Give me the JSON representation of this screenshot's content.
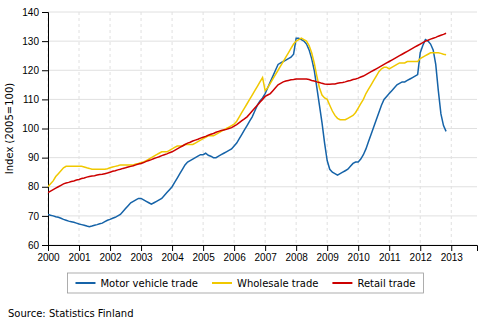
{
  "chart_data": {
    "type": "line",
    "ylabel": "Index (2005=100)",
    "annotations": [
      "Source: Statistics Finland"
    ],
    "xlim": [
      2000,
      2013.83
    ],
    "ylim": [
      60,
      140
    ],
    "xticks": [
      2000,
      2001,
      2002,
      2003,
      2004,
      2005,
      2006,
      2007,
      2008,
      2009,
      2010,
      2011,
      2012,
      2013
    ],
    "yticks": [
      60,
      70,
      80,
      90,
      100,
      110,
      120,
      130,
      140
    ],
    "grid": true,
    "legend": "bottom",
    "x": [
      2000.0,
      2000.083,
      2000.167,
      2000.25,
      2000.333,
      2000.417,
      2000.5,
      2000.583,
      2000.667,
      2000.75,
      2000.833,
      2000.917,
      2001.0,
      2001.083,
      2001.167,
      2001.25,
      2001.333,
      2001.417,
      2001.5,
      2001.583,
      2001.667,
      2001.75,
      2001.833,
      2001.917,
      2002.0,
      2002.083,
      2002.167,
      2002.25,
      2002.333,
      2002.417,
      2002.5,
      2002.583,
      2002.667,
      2002.75,
      2002.833,
      2002.917,
      2003.0,
      2003.083,
      2003.167,
      2003.25,
      2003.333,
      2003.417,
      2003.5,
      2003.583,
      2003.667,
      2003.75,
      2003.833,
      2003.917,
      2004.0,
      2004.083,
      2004.167,
      2004.25,
      2004.333,
      2004.417,
      2004.5,
      2004.583,
      2004.667,
      2004.75,
      2004.833,
      2004.917,
      2005.0,
      2005.083,
      2005.167,
      2005.25,
      2005.333,
      2005.417,
      2005.5,
      2005.583,
      2005.667,
      2005.75,
      2005.833,
      2005.917,
      2006.0,
      2006.083,
      2006.167,
      2006.25,
      2006.333,
      2006.417,
      2006.5,
      2006.583,
      2006.667,
      2006.75,
      2006.833,
      2006.917,
      2007.0,
      2007.083,
      2007.167,
      2007.25,
      2007.333,
      2007.417,
      2007.5,
      2007.583,
      2007.667,
      2007.75,
      2007.833,
      2007.917,
      2008.0,
      2008.083,
      2008.167,
      2008.25,
      2008.333,
      2008.417,
      2008.5,
      2008.583,
      2008.667,
      2008.75,
      2008.833,
      2008.917,
      2009.0,
      2009.083,
      2009.167,
      2009.25,
      2009.333,
      2009.417,
      2009.5,
      2009.583,
      2009.667,
      2009.75,
      2009.833,
      2009.917,
      2010.0,
      2010.083,
      2010.167,
      2010.25,
      2010.333,
      2010.417,
      2010.5,
      2010.583,
      2010.667,
      2010.75,
      2010.833,
      2010.917,
      2011.0,
      2011.083,
      2011.167,
      2011.25,
      2011.333,
      2011.417,
      2011.5,
      2011.583,
      2011.667,
      2011.75,
      2011.833,
      2011.917,
      2012.0,
      2012.083,
      2012.167,
      2012.25,
      2012.333,
      2012.417,
      2012.5,
      2012.583,
      2012.667,
      2012.75,
      2012.833
    ],
    "series": [
      {
        "name": "Motor vehicle trade",
        "color": "#1563a8",
        "values": [
          70.5,
          70.2,
          70.0,
          69.7,
          69.5,
          69.2,
          68.8,
          68.5,
          68.2,
          68.0,
          67.8,
          67.5,
          67.2,
          67.0,
          66.8,
          66.5,
          66.3,
          66.5,
          66.8,
          67.0,
          67.3,
          67.5,
          68.0,
          68.5,
          68.8,
          69.2,
          69.5,
          70.0,
          70.5,
          71.5,
          72.5,
          73.5,
          74.5,
          75.0,
          75.5,
          76.0,
          76.0,
          75.5,
          75.0,
          74.5,
          74.0,
          74.5,
          75.0,
          75.5,
          76.0,
          77.0,
          78.0,
          79.0,
          80.0,
          81.5,
          83.0,
          84.5,
          86.0,
          87.5,
          88.5,
          89.0,
          89.5,
          90.0,
          90.5,
          91.0,
          91.0,
          91.5,
          90.8,
          90.5,
          90.0,
          90.0,
          90.5,
          91.0,
          91.5,
          92.0,
          92.5,
          93.0,
          94.0,
          95.0,
          96.5,
          98.0,
          99.5,
          101.0,
          102.5,
          104.0,
          106.0,
          108.0,
          109.5,
          110.5,
          112.0,
          114.0,
          116.0,
          118.0,
          120.0,
          122.0,
          122.5,
          123.0,
          123.5,
          124.0,
          124.5,
          125.5,
          131.0,
          131.0,
          130.5,
          130.0,
          129.0,
          127.0,
          124.0,
          120.0,
          114.0,
          108.0,
          102.0,
          95.0,
          89.0,
          86.0,
          85.0,
          84.5,
          84.0,
          84.5,
          85.0,
          85.5,
          86.0,
          87.0,
          88.0,
          88.5,
          88.5,
          89.5,
          91.0,
          93.0,
          95.5,
          98.0,
          100.5,
          103.0,
          105.5,
          108.0,
          110.0,
          111.0,
          112.0,
          113.0,
          114.0,
          115.0,
          115.5,
          116.0,
          116.0,
          116.5,
          117.0,
          117.5,
          118.0,
          118.5,
          126.0,
          128.5,
          130.5,
          130.0,
          129.0,
          127.0,
          122.0,
          113.0,
          105.0,
          101.0,
          99.0
        ]
      },
      {
        "name": "Wholesale trade",
        "color": "#f0c800",
        "values": [
          80.0,
          81.0,
          82.0,
          83.5,
          84.5,
          85.5,
          86.5,
          87.0,
          87.0,
          87.0,
          87.0,
          87.0,
          87.0,
          87.0,
          86.8,
          86.5,
          86.3,
          86.0,
          86.0,
          86.0,
          86.0,
          86.0,
          86.0,
          86.2,
          86.5,
          86.8,
          87.0,
          87.2,
          87.5,
          87.5,
          87.5,
          87.5,
          87.5,
          87.5,
          87.8,
          88.0,
          88.3,
          88.5,
          89.0,
          89.5,
          90.0,
          90.5,
          91.0,
          91.5,
          92.0,
          92.0,
          92.0,
          92.5,
          93.0,
          93.5,
          94.0,
          94.0,
          94.0,
          94.5,
          94.5,
          94.5,
          94.5,
          95.0,
          95.5,
          96.0,
          96.5,
          97.0,
          97.5,
          97.5,
          97.5,
          98.0,
          98.5,
          99.0,
          99.5,
          100.0,
          100.5,
          101.0,
          101.5,
          102.5,
          104.0,
          105.5,
          107.0,
          108.5,
          110.0,
          111.5,
          113.0,
          114.5,
          116.0,
          117.5,
          113.0,
          114.0,
          115.5,
          117.0,
          118.5,
          120.0,
          121.5,
          123.0,
          124.5,
          126.0,
          127.5,
          129.0,
          130.0,
          130.5,
          131.0,
          130.5,
          130.0,
          128.5,
          126.0,
          122.5,
          118.0,
          114.0,
          111.5,
          110.5,
          110.0,
          108.0,
          106.0,
          104.5,
          103.5,
          103.0,
          103.0,
          103.0,
          103.5,
          104.0,
          104.5,
          105.5,
          107.0,
          108.5,
          110.0,
          112.0,
          113.5,
          115.0,
          116.5,
          118.0,
          119.5,
          120.5,
          121.0,
          121.0,
          120.5,
          121.0,
          121.5,
          122.0,
          122.5,
          122.5,
          122.5,
          123.0,
          123.0,
          123.0,
          123.0,
          123.0,
          124.0,
          124.5,
          125.0,
          125.5,
          126.0,
          126.0,
          126.0,
          126.0,
          125.8,
          125.5,
          125.3
        ]
      },
      {
        "name": "Retail trade",
        "color": "#cc0000",
        "values": [
          78.0,
          78.5,
          79.0,
          79.5,
          80.0,
          80.5,
          81.0,
          81.3,
          81.5,
          81.8,
          82.0,
          82.3,
          82.5,
          82.8,
          83.0,
          83.3,
          83.5,
          83.7,
          83.8,
          84.0,
          84.2,
          84.3,
          84.5,
          84.7,
          85.0,
          85.3,
          85.5,
          85.8,
          86.0,
          86.3,
          86.5,
          86.8,
          87.0,
          87.2,
          87.5,
          87.8,
          88.0,
          88.3,
          88.7,
          89.0,
          89.3,
          89.7,
          90.0,
          90.3,
          90.7,
          91.0,
          91.3,
          91.7,
          92.0,
          92.5,
          93.0,
          93.5,
          94.0,
          94.5,
          95.0,
          95.3,
          95.7,
          96.0,
          96.3,
          96.7,
          97.0,
          97.3,
          97.7,
          98.0,
          98.3,
          98.7,
          99.0,
          99.3,
          99.5,
          99.7,
          100.0,
          100.3,
          100.8,
          101.3,
          102.0,
          102.7,
          103.3,
          104.0,
          105.0,
          106.0,
          107.0,
          108.0,
          109.0,
          110.0,
          111.0,
          111.5,
          112.0,
          113.0,
          114.0,
          115.0,
          115.5,
          116.0,
          116.3,
          116.5,
          116.7,
          116.8,
          117.0,
          117.0,
          117.0,
          117.0,
          117.0,
          116.8,
          116.5,
          116.3,
          116.0,
          115.8,
          115.5,
          115.3,
          115.2,
          115.2,
          115.3,
          115.3,
          115.5,
          115.7,
          115.8,
          116.0,
          116.3,
          116.5,
          116.8,
          117.0,
          117.3,
          117.7,
          118.0,
          118.5,
          119.0,
          119.5,
          120.0,
          120.5,
          121.0,
          121.5,
          122.0,
          122.5,
          123.0,
          123.5,
          124.0,
          124.5,
          125.0,
          125.5,
          126.0,
          126.5,
          127.0,
          127.5,
          128.0,
          128.5,
          129.0,
          129.5,
          130.0,
          130.3,
          130.7,
          131.0,
          131.3,
          131.7,
          132.0,
          132.3,
          132.7
        ]
      }
    ]
  }
}
